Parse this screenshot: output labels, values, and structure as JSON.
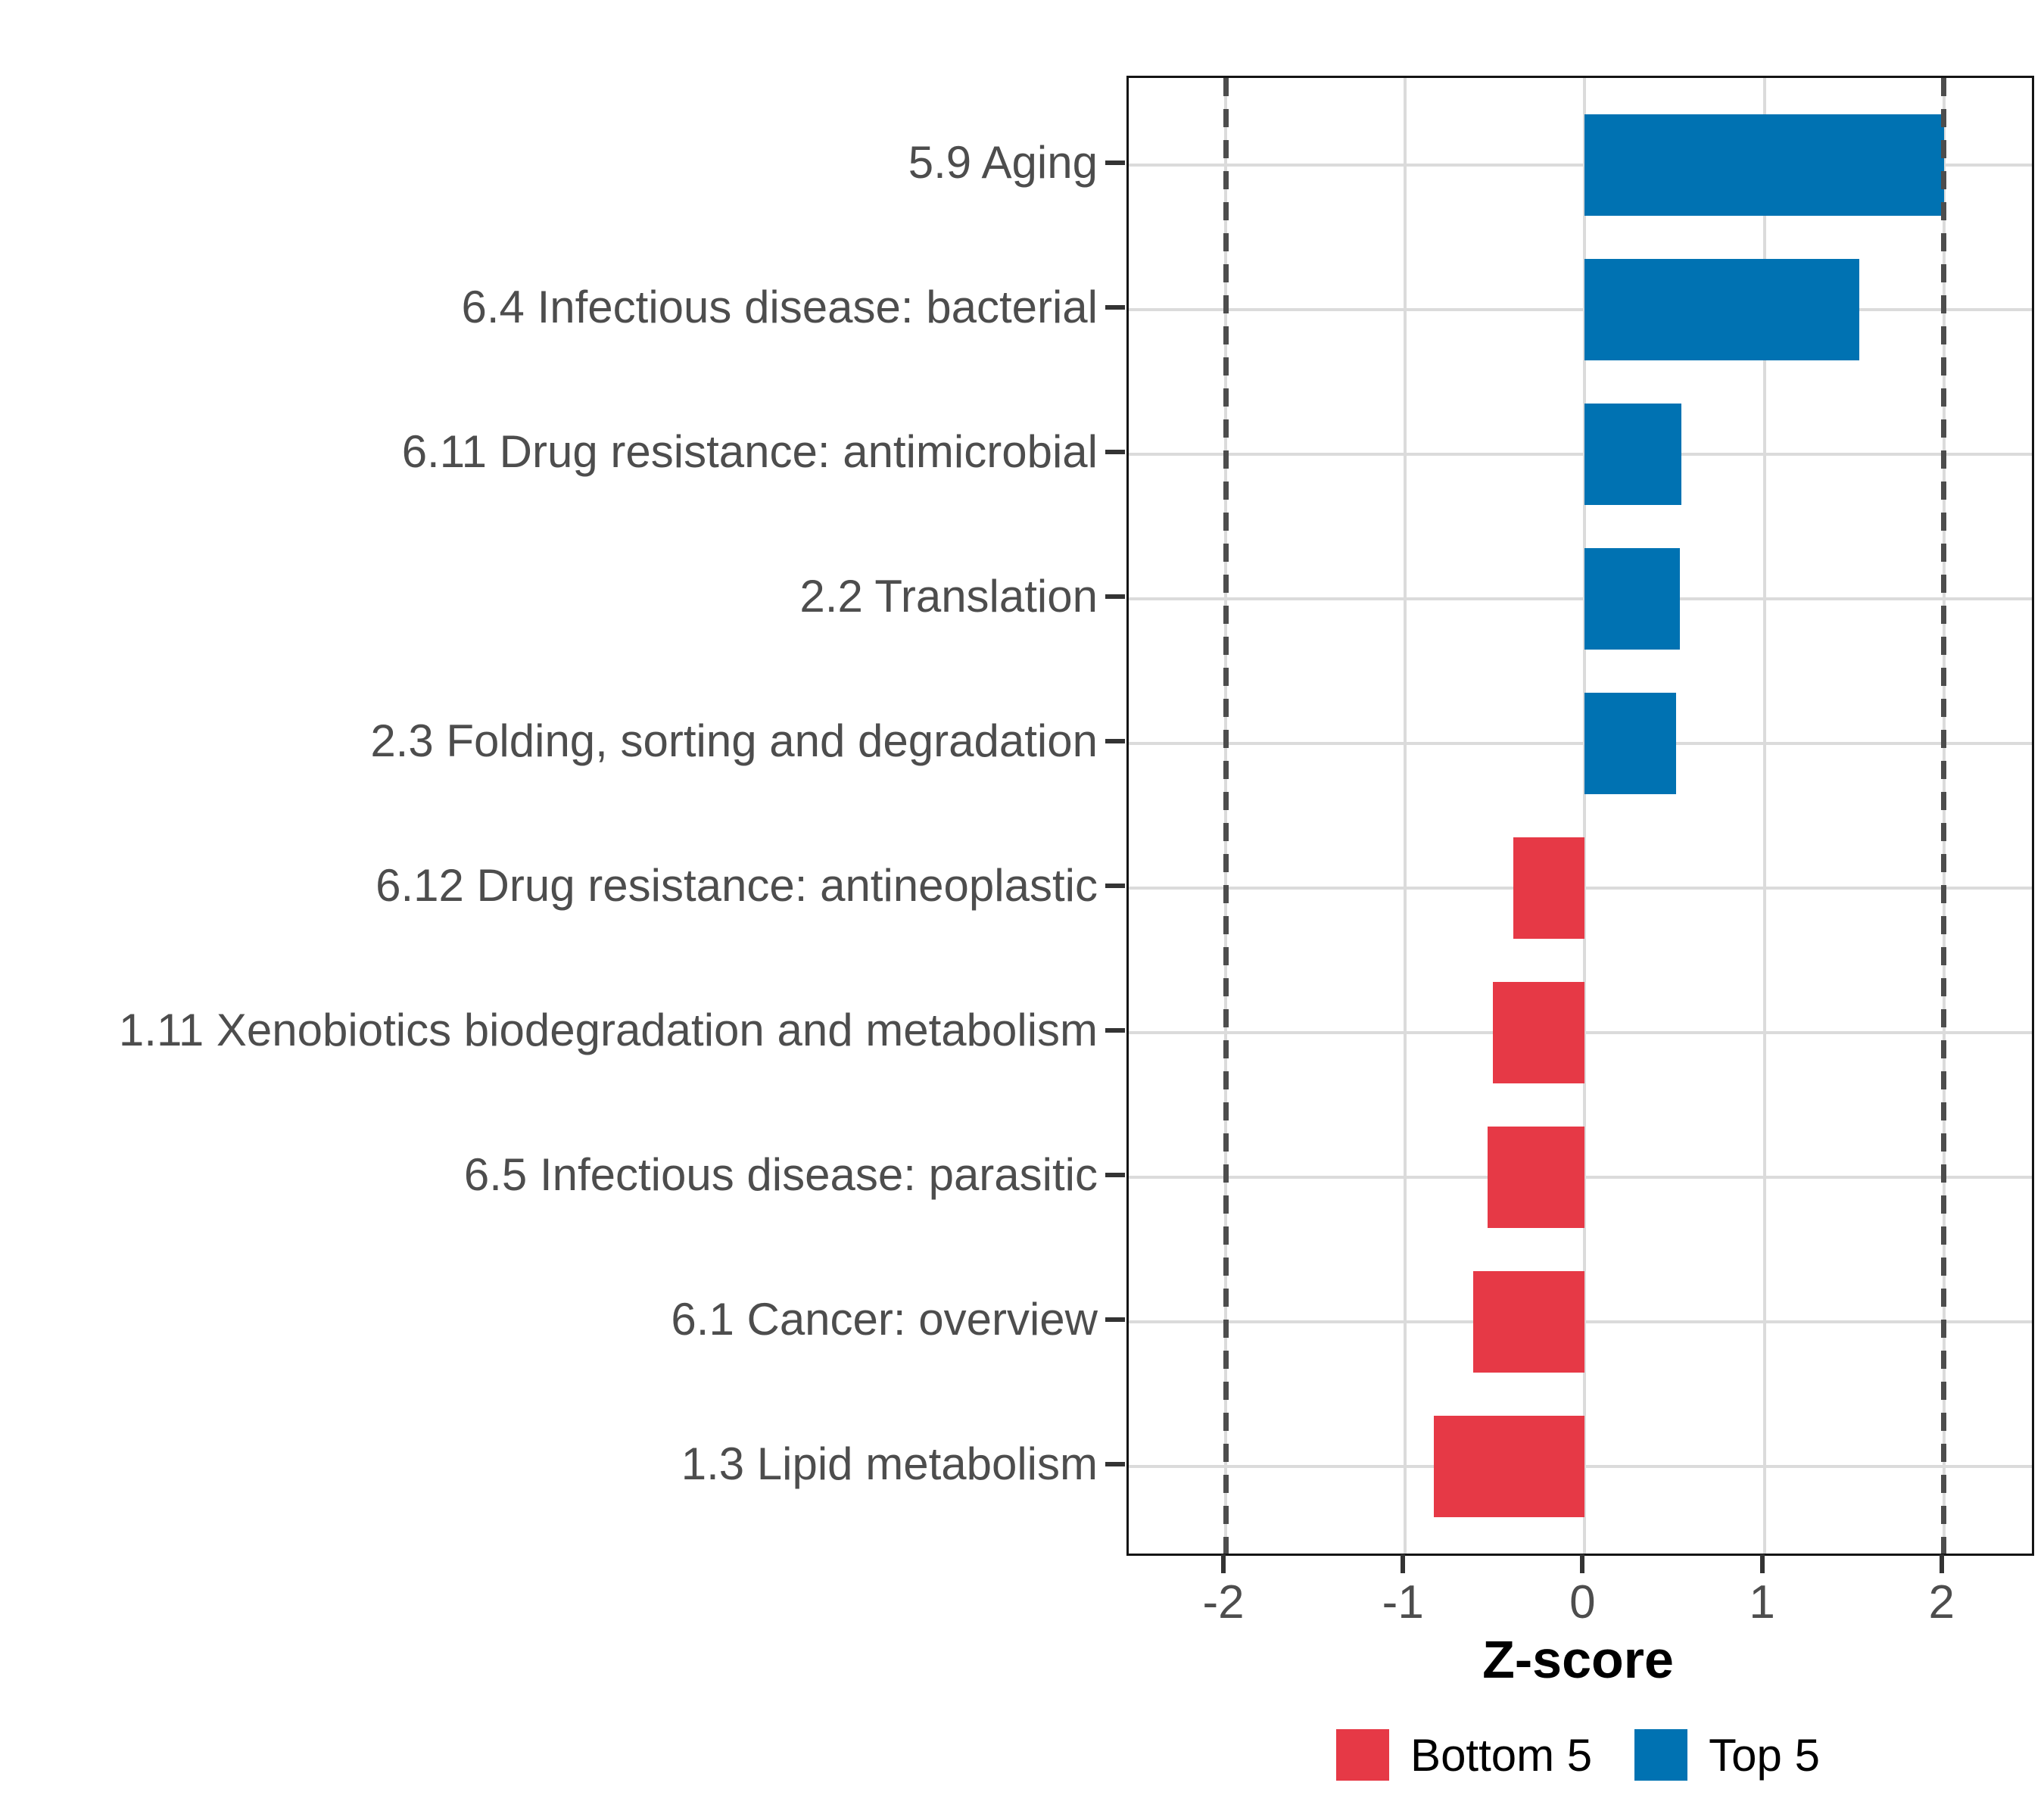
{
  "chart_data": {
    "type": "bar",
    "orientation": "horizontal",
    "xlabel": "Z-score",
    "categories": [
      "5.9 Aging",
      "6.4 Infectious disease: bacterial",
      "6.11 Drug resistance: antimicrobial",
      "2.2 Translation",
      "2.3 Folding, sorting and degradation",
      "6.12 Drug resistance: antineoplastic",
      "1.11 Xenobiotics biodegradation and metabolism",
      "6.5 Infectious disease: parasitic",
      "6.1 Cancer: overview",
      "1.3 Lipid metabolism"
    ],
    "values": [
      2.0,
      1.53,
      0.54,
      0.53,
      0.51,
      -0.4,
      -0.51,
      -0.54,
      -0.62,
      -0.84
    ],
    "groups": [
      "Top 5",
      "Top 5",
      "Top 5",
      "Top 5",
      "Top 5",
      "Bottom 5",
      "Bottom 5",
      "Bottom 5",
      "Bottom 5",
      "Bottom 5"
    ],
    "xlim": [
      -2.54,
      2.49
    ],
    "xticks": [
      -2,
      -1,
      0,
      1,
      2
    ],
    "xtick_labels": [
      "-2",
      "-1",
      "0",
      "1",
      "2"
    ],
    "reference_lines": {
      "values": [
        -2,
        2
      ],
      "style": "dashed",
      "color": "#4D4D4D"
    },
    "grid": true,
    "legend": {
      "position": "bottom",
      "entries": [
        {
          "label": "Bottom 5",
          "color": "#E63946"
        },
        {
          "label": "Top 5",
          "color": "#0072B2"
        }
      ]
    }
  }
}
